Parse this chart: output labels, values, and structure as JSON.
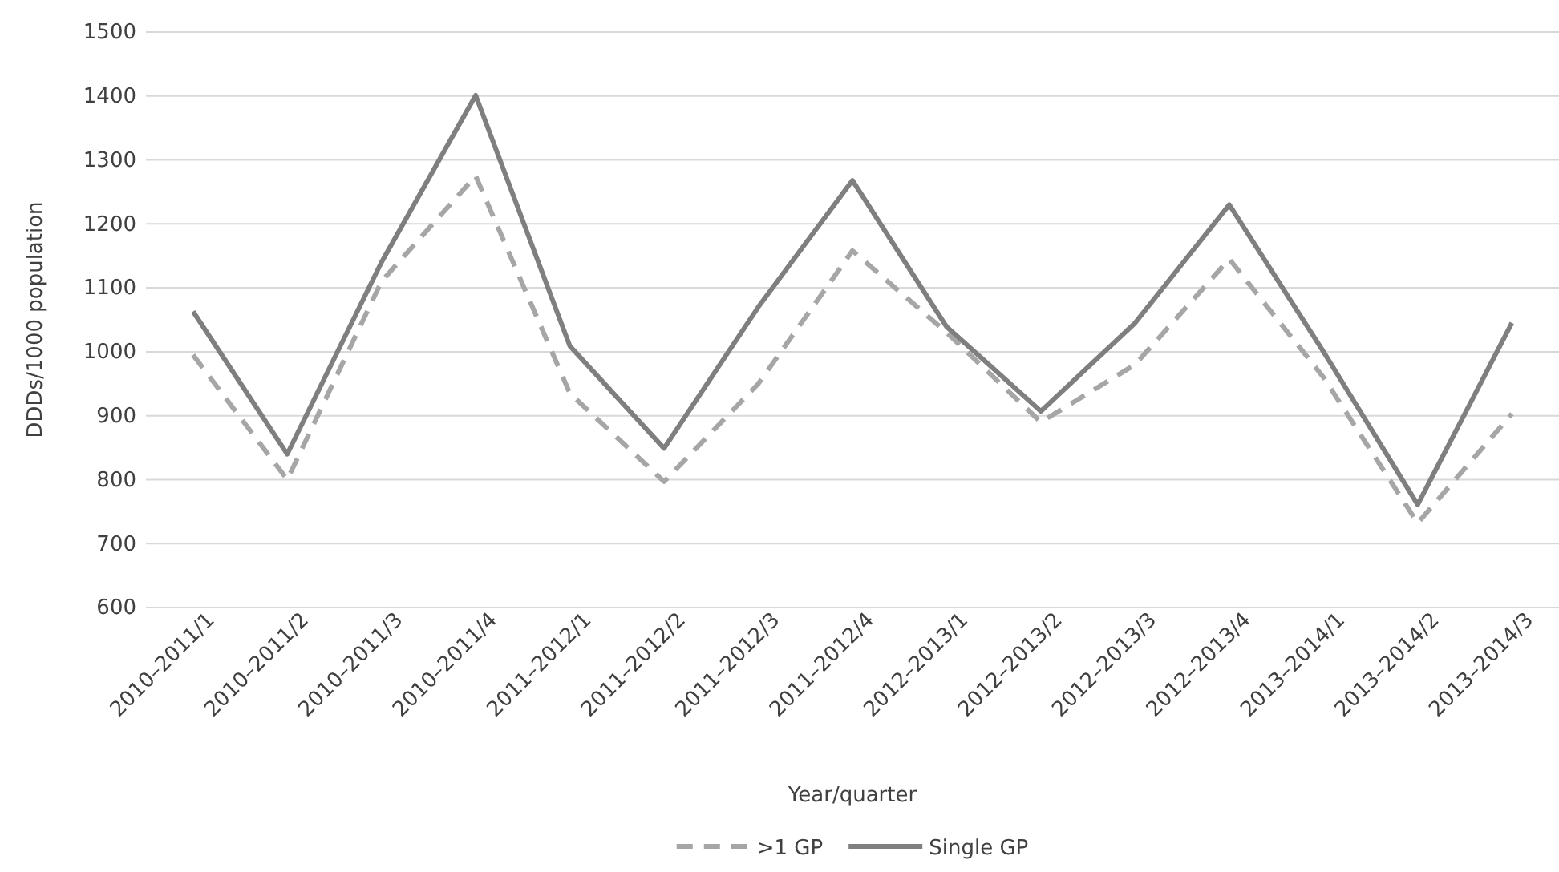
{
  "chart_data": {
    "type": "line",
    "xlabel": "Year/quarter",
    "ylabel": "DDDs/1000 population",
    "categories": [
      "2010–2011/1",
      "2010–2011/2",
      "2010–2011/3",
      "2010–2011/4",
      "2011–2012/1",
      "2011–2012/2",
      "2011–2012/3",
      "2011–2012/4",
      "2012–2013/1",
      "2012–2013/2",
      "2012–2013/3",
      "2012–2013/4",
      "2013–2014/1",
      "2013–2014/2",
      "2013–2014/3"
    ],
    "series": [
      {
        "name": ">1 GP",
        "color": "#a6a6a6",
        "line_style": "dashed",
        "values": [
          995,
          800,
          1110,
          1275,
          935,
          797,
          950,
          1158,
          1030,
          890,
          980,
          1145,
          960,
          732,
          903
        ]
      },
      {
        "name": "Single GP",
        "color": "#7f7f7f",
        "line_style": "solid",
        "values": [
          1063,
          840,
          1140,
          1401,
          1009,
          849,
          1070,
          1268,
          1039,
          907,
          1045,
          1230,
          1000,
          761,
          1045
        ]
      }
    ],
    "ylim": [
      600,
      1500
    ],
    "yticks": [
      600,
      700,
      800,
      900,
      1000,
      1100,
      1200,
      1300,
      1400,
      1500
    ],
    "grid": "y",
    "legend": "bottom",
    "marker": "none"
  }
}
